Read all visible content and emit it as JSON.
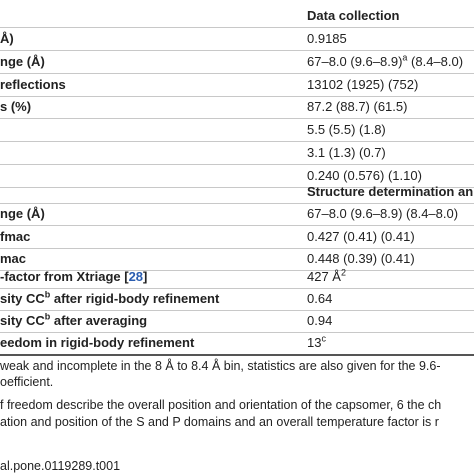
{
  "table": {
    "headers": [
      {
        "text": "Data collection",
        "row": 0
      },
      {
        "text": "Structure determination an",
        "row": 8
      }
    ],
    "rows": [
      {
        "label": [
          {
            "text": "Å)"
          }
        ],
        "value": [
          {
            "text": "0.9185"
          }
        ]
      },
      {
        "label": [
          {
            "text": "nge (Å)"
          }
        ],
        "value": [
          {
            "text": "67–8.0 (9.6–8.9)"
          },
          {
            "text": "a",
            "sup": true
          },
          {
            "text": " (8.4–8.0)"
          }
        ]
      },
      {
        "label": [
          {
            "text": " reflections"
          }
        ],
        "value": [
          {
            "text": "13102 (1925) (752)"
          }
        ]
      },
      {
        "label": [
          {
            "text": "s (%)"
          }
        ],
        "value": [
          {
            "text": "87.2 (88.7) (61.5)"
          }
        ]
      },
      {
        "label": [],
        "value": [
          {
            "text": "5.5 (5.5) (1.8)"
          }
        ]
      },
      {
        "label": [],
        "value": [
          {
            "text": "3.1 (1.3) (0.7)"
          }
        ]
      },
      {
        "label": [],
        "value": [
          {
            "text": "0.240 (0.576) (1.10)"
          }
        ]
      },
      {
        "label": [
          {
            "text": "nge (Å)"
          }
        ],
        "value": [
          {
            "text": "67–8.0 (9.6–8.9) (8.4–8.0)"
          }
        ]
      },
      {
        "label": [
          {
            "text": "fmac"
          }
        ],
        "value": [
          {
            "text": "0.427 (0.41) (0.41)"
          }
        ]
      },
      {
        "label": [
          {
            "text": "mac"
          }
        ],
        "value": [
          {
            "text": "0.448 (0.39) (0.41)"
          }
        ]
      },
      {
        "label": [
          {
            "text": "-factor from Xtriage ["
          },
          {
            "text": "28",
            "link": true
          },
          {
            "text": "]"
          }
        ],
        "value": [
          {
            "text": "427 Å"
          },
          {
            "text": "2",
            "sup": true
          }
        ]
      },
      {
        "label": [
          {
            "text": "sity CC"
          },
          {
            "text": "b",
            "sup": true
          },
          {
            "text": " after rigid-body refinement"
          }
        ],
        "value": [
          {
            "text": "0.64"
          }
        ]
      },
      {
        "label": [
          {
            "text": "sity CC"
          },
          {
            "text": "b",
            "sup": true
          },
          {
            "text": " after averaging"
          }
        ],
        "value": [
          {
            "text": "0.94"
          }
        ]
      },
      {
        "label": [
          {
            "text": "eedom in rigid-body refinement"
          }
        ],
        "value": [
          {
            "text": "13"
          },
          {
            "text": "c",
            "sup": true
          }
        ]
      }
    ]
  },
  "footnotes": [
    "weak and incomplete in the 8 Å to 8.4 Å bin, statistics are also given for the 9.6-",
    "oefficient.",
    "f freedom describe the overall position and orientation of the capsomer, 6 the ch",
    "ation and position of the S and P domains and an overall temperature factor is r"
  ],
  "doi": "al.pone.0119289.t001"
}
